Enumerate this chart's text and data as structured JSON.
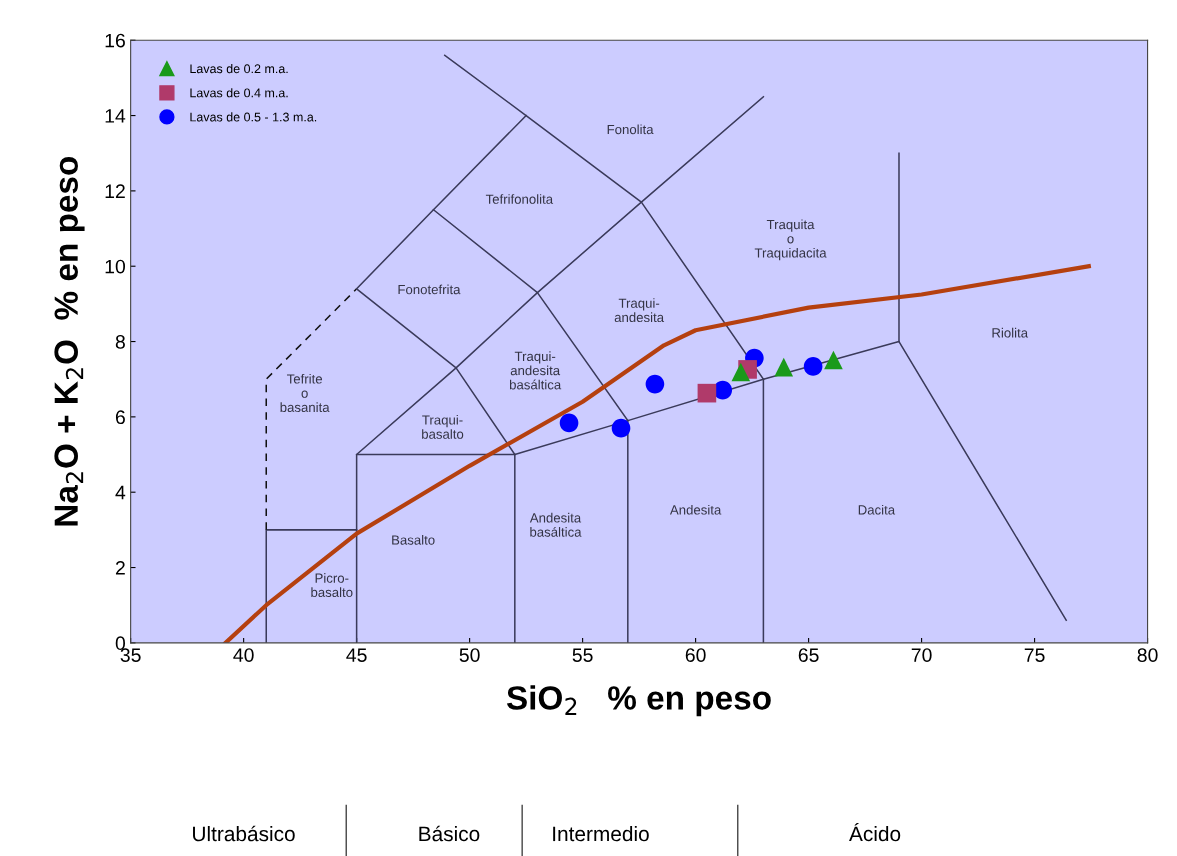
{
  "chart_data": {
    "type": "scatter",
    "xlabel": "SiO$_{2}$   % en peso",
    "ylabel": "Na$_{2}$O + K$_{2}$O  % en peso",
    "xlim": [
      35,
      80
    ],
    "xticks": [
      35,
      40,
      45,
      50,
      55,
      60,
      65,
      70,
      75,
      80
    ],
    "ylim": [
      0,
      16
    ],
    "yticks": [
      0,
      2,
      4,
      6,
      8,
      10,
      12,
      14,
      16
    ],
    "grid": false,
    "legend": "top left",
    "series": [
      {
        "type": "line",
        "color": "#3a3a5a",
        "marker": "none",
        "line_style": "solid",
        "x": [
          41,
          41,
          45
        ],
        "values": [
          0,
          3,
          3
        ]
      },
      {
        "type": "line",
        "color": "#111111",
        "marker": "none",
        "line_style": "dashed",
        "x": [
          41,
          41,
          45
        ],
        "values": [
          3,
          7,
          9.4
        ]
      },
      {
        "type": "line",
        "color": "#3a3a5a",
        "marker": "none",
        "line_style": "solid",
        "x": [
          45,
          45,
          52,
          57,
          63,
          69,
          76.4
        ],
        "values": [
          0,
          5,
          5,
          5.9,
          7,
          8,
          0.6
        ]
      },
      {
        "type": "line",
        "color": "#3a3a5a",
        "marker": "none",
        "line_style": "solid",
        "x": [
          52,
          52
        ],
        "values": [
          0,
          5
        ]
      },
      {
        "type": "line",
        "color": "#3a3a5a",
        "marker": "none",
        "line_style": "solid",
        "x": [
          57,
          57
        ],
        "values": [
          0,
          5.9
        ]
      },
      {
        "type": "line",
        "color": "#3a3a5a",
        "marker": "none",
        "line_style": "solid",
        "x": [
          63,
          63
        ],
        "values": [
          0,
          7
        ]
      },
      {
        "type": "line",
        "color": "#3a3a5a",
        "marker": "none",
        "line_style": "solid",
        "x": [
          69,
          69
        ],
        "values": [
          8,
          13
        ]
      },
      {
        "type": "line",
        "color": "#3a3a5a",
        "marker": "none",
        "line_style": "solid",
        "x": [
          45,
          49.4,
          53,
          57.6,
          63
        ],
        "values": [
          5,
          7.3,
          9.3,
          11.7,
          14.5
        ]
      },
      {
        "type": "line",
        "color": "#3a3a5a",
        "marker": "none",
        "line_style": "solid",
        "x": [
          52,
          49.4,
          45,
          48.4,
          52.5
        ],
        "values": [
          5,
          7.3,
          9.4,
          11.5,
          14
        ]
      },
      {
        "type": "line",
        "color": "#3a3a5a",
        "marker": "none",
        "line_style": "solid",
        "x": [
          57,
          53,
          48.4
        ],
        "values": [
          5.9,
          9.3,
          11.5
        ]
      },
      {
        "type": "line",
        "color": "#3a3a5a",
        "marker": "none",
        "line_style": "solid",
        "x": [
          48.9,
          52.5,
          57.6,
          63
        ],
        "values": [
          15.6,
          14,
          11.7,
          7
        ]
      },
      {
        "type": "line",
        "color": "#b5400f",
        "marker": "none",
        "line_style": "solid",
        "x": [
          39.2,
          41,
          45,
          50,
          55,
          58.6,
          60,
          65,
          70,
          77.4
        ],
        "values": [
          0,
          1.0,
          2.9,
          4.7,
          6.4,
          7.9,
          8.3,
          8.9,
          9.25,
          10.0
        ]
      },
      {
        "name": "Lavas de 0.2 m.a.",
        "color": "#1a9a1a",
        "marker": "triangle",
        "x": [
          62.0,
          63.9,
          66.1
        ],
        "values": [
          7.19,
          7.32,
          7.51
        ]
      },
      {
        "name": "Lavas de 0.4 m.a.",
        "color": "#b03a6a",
        "marker": "square",
        "x": [
          60.5,
          62.3
        ],
        "values": [
          6.63,
          7.26
        ]
      },
      {
        "name": "Lavas de 0.5 - 1.3 m.a.",
        "color": "#0000ff",
        "marker": "circle",
        "x": [
          54.4,
          56.7,
          58.2,
          61.2,
          62.6,
          65.2
        ],
        "values": [
          5.84,
          5.7,
          6.87,
          6.71,
          7.56,
          7.34
        ]
      }
    ],
    "annotations": [
      "Fonolita",
      "Tefrifonolita",
      "Fonotefrita",
      "Traqui-\nandesita",
      "Traquita\no\nTraquidacita",
      "Riolita",
      "Tefrite\no\nbasanita",
      "Traqui-\nandesita\nbasáltica",
      "Traqui-\nbasalto",
      "Basalto",
      "Andesita\nbasáltica",
      "Andesita",
      "Dacita",
      "Picro-\nbasalto",
      "Ultrabásico",
      "Básico",
      "Intermedio",
      "Ácido"
    ]
  }
}
